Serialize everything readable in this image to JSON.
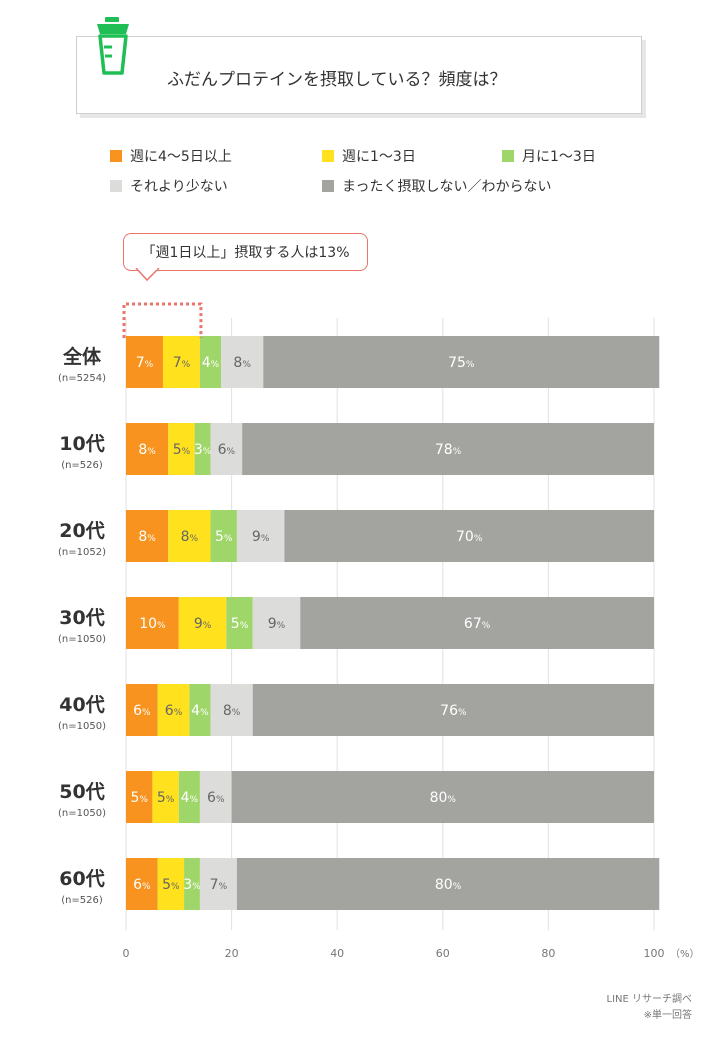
{
  "title": "ふだんプロテインを摂取している？頻度は？",
  "legend": [
    {
      "label": "週に4〜5日以上",
      "color": "#f7931e"
    },
    {
      "label": "週に1〜3日",
      "color": "#ffe11d"
    },
    {
      "label": "月に1〜3日",
      "color": "#9fd66a"
    },
    {
      "label": "それより少ない",
      "color": "#dcdcda"
    },
    {
      "label": "まったく摂取しない／わからない",
      "color": "#a3a39f"
    }
  ],
  "callout": "「週1日以上」摂取する人は13%",
  "footnote": {
    "source": "LINE リサーチ調べ",
    "note": "※単一回答"
  },
  "chart_data": {
    "type": "bar",
    "orientation": "horizontal",
    "stacked": true,
    "categories": [
      {
        "name": "全体",
        "n": "(n=5254)"
      },
      {
        "name": "10代",
        "n": "(n=526)"
      },
      {
        "name": "20代",
        "n": "(n=1052)"
      },
      {
        "name": "30代",
        "n": "(n=1050)"
      },
      {
        "name": "40代",
        "n": "(n=1050)"
      },
      {
        "name": "50代",
        "n": "(n=1050)"
      },
      {
        "name": "60代",
        "n": "(n=526)"
      }
    ],
    "series": [
      {
        "name": "週に4〜5日以上",
        "color": "#f7931e",
        "values": [
          7,
          8,
          8,
          10,
          6,
          5,
          6
        ]
      },
      {
        "name": "週に1〜3日",
        "color": "#ffe11d",
        "values": [
          7,
          5,
          8,
          9,
          6,
          5,
          5
        ]
      },
      {
        "name": "月に1〜3日",
        "color": "#9fd66a",
        "values": [
          4,
          3,
          5,
          5,
          4,
          4,
          3
        ]
      },
      {
        "name": "それより少ない",
        "color": "#dcdcda",
        "values": [
          8,
          6,
          9,
          9,
          8,
          6,
          7
        ]
      },
      {
        "name": "まったく摂取しない／わからない",
        "color": "#a3a39f",
        "values": [
          75,
          78,
          70,
          67,
          76,
          80,
          80
        ]
      }
    ],
    "label_colors": [
      "#ffffff",
      "#666666",
      "#ffffff",
      "#666666",
      "#ffffff"
    ],
    "xlim": [
      0,
      100
    ],
    "xticks": [
      0,
      20,
      40,
      60,
      80,
      100
    ],
    "xunit": "（%）",
    "value_unit": "%",
    "grid": true
  }
}
